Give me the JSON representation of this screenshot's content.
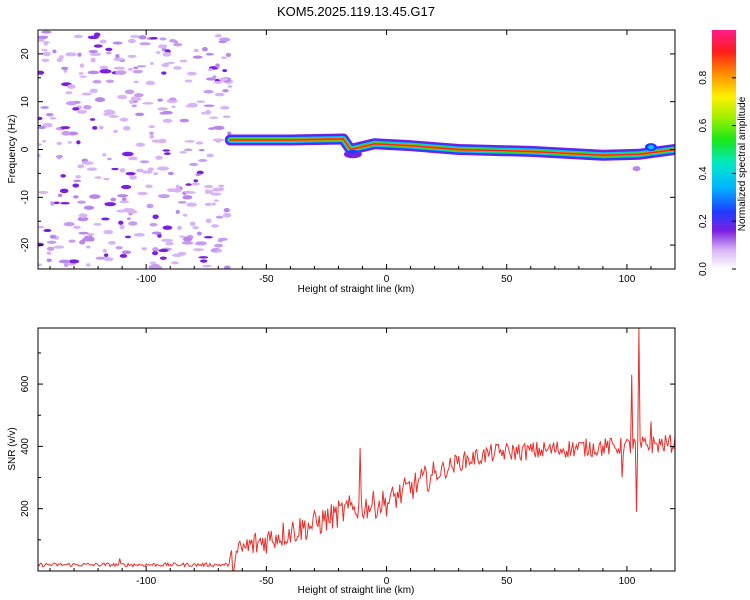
{
  "title": "KOM5.2025.119.13.45.G17",
  "colors": {
    "snr_line": "#e8302c",
    "axis": "#000000"
  },
  "chart_data": [
    {
      "type": "heatmap",
      "xlabel": "Height of straight line (km)",
      "ylabel": "Frequency (Hz)",
      "xlim": [
        -145,
        120
      ],
      "ylim": [
        -25,
        25
      ],
      "xticks": [
        -100,
        -50,
        0,
        50,
        100
      ],
      "yticks": [
        -20,
        -10,
        0,
        10,
        20
      ],
      "colorbar": {
        "label": "Normalized spectral amplitude",
        "range": [
          0,
          1
        ],
        "ticks": [
          "0.0",
          "0.2",
          "0.4",
          "0.6",
          "0.8"
        ],
        "colormap": "rainbow"
      },
      "signal_track": [
        {
          "x": -65,
          "freq": 2.0
        },
        {
          "x": -40,
          "freq": 2.0
        },
        {
          "x": -18,
          "freq": 2.2
        },
        {
          "x": -15,
          "freq": 0.0
        },
        {
          "x": -5,
          "freq": 1.2
        },
        {
          "x": 10,
          "freq": 0.8
        },
        {
          "x": 30,
          "freq": 0.0
        },
        {
          "x": 60,
          "freq": -0.4
        },
        {
          "x": 90,
          "freq": -1.2
        },
        {
          "x": 105,
          "freq": -1.0
        },
        {
          "x": 120,
          "freq": 0.0
        }
      ],
      "noise_region": [
        -145,
        -65
      ]
    },
    {
      "type": "line",
      "xlabel": "Height of straight line (km)",
      "ylabel": "SNR (v/v)",
      "xlim": [
        -145,
        120
      ],
      "ylim": [
        0,
        780
      ],
      "xticks": [
        -100,
        -50,
        0,
        50,
        100
      ],
      "yticks": [
        200,
        400,
        600
      ],
      "series": [
        {
          "trend": [
            {
              "x": -145,
              "y": 20
            },
            {
              "x": -65,
              "y": 20
            },
            {
              "x": -60,
              "y": 70
            },
            {
              "x": -45,
              "y": 115
            },
            {
              "x": -30,
              "y": 150
            },
            {
              "x": -15,
              "y": 200
            },
            {
              "x": 0,
              "y": 220
            },
            {
              "x": 15,
              "y": 290
            },
            {
              "x": 30,
              "y": 350
            },
            {
              "x": 45,
              "y": 380
            },
            {
              "x": 60,
              "y": 385
            },
            {
              "x": 80,
              "y": 395
            },
            {
              "x": 100,
              "y": 400
            },
            {
              "x": 120,
              "y": 410
            }
          ],
          "spikes": [
            {
              "x": -111,
              "y": 40
            },
            {
              "x": -11,
              "y": 395
            },
            {
              "x": 98,
              "y": 300
            },
            {
              "x": 102,
              "y": 630
            },
            {
              "x": 104,
              "y": 190
            },
            {
              "x": 105,
              "y": 780
            },
            {
              "x": 110,
              "y": 480
            }
          ]
        }
      ]
    }
  ]
}
